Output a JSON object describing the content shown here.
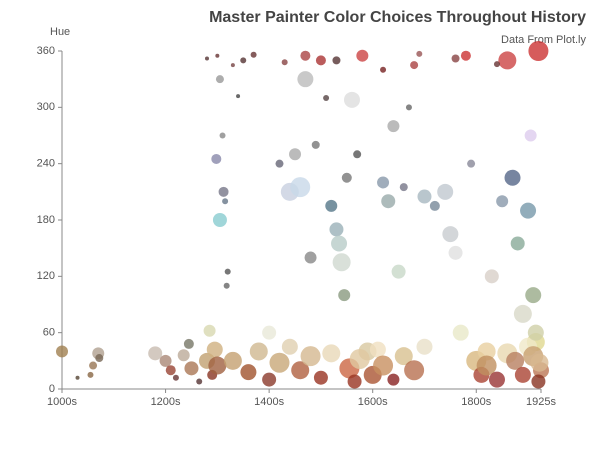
{
  "chart_data": {
    "type": "scatter",
    "title": "Master Painter Color Choices Throughout History",
    "subtitle": "Data From Plot.ly",
    "y_label": "Hue",
    "xlim": [
      1000,
      1925
    ],
    "ylim": [
      0,
      360
    ],
    "xticks": [
      {
        "value": 1000,
        "label": "1000s"
      },
      {
        "value": 1200,
        "label": "1200s"
      },
      {
        "value": 1400,
        "label": "1400s"
      },
      {
        "value": 1600,
        "label": "1600s"
      },
      {
        "value": 1800,
        "label": "1800s"
      },
      {
        "value": 1925,
        "label": "1925s"
      }
    ],
    "yticks": [
      0,
      60,
      120,
      180,
      240,
      300,
      360
    ],
    "x": [
      1000,
      1030,
      1055,
      1060,
      1070,
      1072,
      1180,
      1200,
      1210,
      1220,
      1235,
      1245,
      1250,
      1265,
      1280,
      1285,
      1290,
      1295,
      1300,
      1305,
      1298,
      1305,
      1310,
      1312,
      1315,
      1300,
      1318,
      1340,
      1350,
      1320,
      1330,
      1360,
      1380,
      1400,
      1420,
      1440,
      1460,
      1480,
      1500,
      1520,
      1400,
      1420,
      1440,
      1450,
      1460,
      1470,
      1480,
      1490,
      1500,
      1510,
      1520,
      1530,
      1535,
      1540,
      1545,
      1550,
      1560,
      1570,
      1580,
      1590,
      1555,
      1565,
      1575,
      1600,
      1610,
      1620,
      1640,
      1660,
      1680,
      1700,
      1620,
      1630,
      1640,
      1650,
      1660,
      1670,
      1680,
      1700,
      1720,
      1740,
      1750,
      1760,
      1770,
      1780,
      1790,
      1800,
      1810,
      1820,
      1830,
      1850,
      1860,
      1870,
      1880,
      1890,
      1900,
      1905,
      1910,
      1915,
      1920,
      1925,
      1280,
      1330,
      1370,
      1430,
      1470,
      1530,
      1620,
      1690,
      1760,
      1840,
      1820,
      1840,
      1860,
      1875,
      1890,
      1900,
      1910,
      1915,
      1920,
      1922
    ],
    "values": [
      40,
      12,
      15,
      25,
      38,
      33,
      38,
      30,
      20,
      12,
      36,
      48,
      22,
      8,
      30,
      62,
      15,
      42,
      25,
      180,
      245,
      330,
      270,
      210,
      200,
      355,
      110,
      312,
      350,
      125,
      30,
      18,
      40,
      10,
      28,
      45,
      20,
      35,
      12,
      38,
      60,
      240,
      210,
      250,
      215,
      330,
      140,
      260,
      350,
      310,
      195,
      170,
      155,
      135,
      100,
      225,
      308,
      250,
      355,
      40,
      22,
      8,
      32,
      15,
      42,
      25,
      10,
      35,
      20,
      45,
      220,
      200,
      280,
      125,
      215,
      300,
      345,
      205,
      195,
      210,
      165,
      145,
      60,
      355,
      240,
      30,
      15,
      40,
      120,
      200,
      350,
      225,
      155,
      80,
      190,
      270,
      100,
      50,
      360,
      20,
      352,
      345,
      356,
      348,
      355,
      350,
      340,
      357,
      352,
      346,
      25,
      10,
      38,
      30,
      15,
      45,
      35,
      60,
      8,
      28
    ],
    "sizes": [
      6,
      2,
      3,
      4,
      6,
      4,
      7,
      6,
      5,
      3,
      6,
      5,
      7,
      3,
      8,
      6,
      5,
      8,
      9,
      7,
      5,
      4,
      3,
      5,
      3,
      2,
      3,
      2,
      3,
      3,
      9,
      8,
      9,
      7,
      10,
      8,
      9,
      10,
      7,
      9,
      7,
      4,
      9,
      6,
      10,
      8,
      6,
      4,
      5,
      3,
      6,
      7,
      8,
      9,
      6,
      5,
      8,
      4,
      6,
      9,
      10,
      7,
      10,
      9,
      8,
      10,
      6,
      9,
      10,
      8,
      6,
      7,
      6,
      7,
      4,
      3,
      4,
      7,
      5,
      8,
      8,
      7,
      8,
      5,
      4,
      10,
      8,
      9,
      7,
      6,
      9,
      8,
      7,
      9,
      8,
      6,
      8,
      9,
      10,
      8,
      2,
      2,
      3,
      3,
      5,
      4,
      3,
      3,
      4,
      3,
      10,
      8,
      10,
      9,
      8,
      9,
      10,
      8,
      7,
      9
    ],
    "colors": [
      "#a08050",
      "#554433",
      "#886644",
      "#997755",
      "#b0a090",
      "#776655",
      "#c8bcb0",
      "#aa8877",
      "#994433",
      "#663333",
      "#bbaa99",
      "#777766",
      "#aa7755",
      "#553333",
      "#c0a070",
      "#d8d8b0",
      "#883322",
      "#d0b080",
      "#a06040",
      "#88ccd0",
      "#8888aa",
      "#999999",
      "#888888",
      "#777788",
      "#667788",
      "#663333",
      "#666666",
      "#444444",
      "#553333",
      "#555555",
      "#c4a070",
      "#a0522d",
      "#d0b890",
      "#8b3a2a",
      "#c8a878",
      "#e0d0b0",
      "#b06040",
      "#d4b890",
      "#993322",
      "#e8d8b8",
      "#e8e8d8",
      "#666677",
      "#c8d0e0",
      "#aaaaaa",
      "#c8d8e8",
      "#bbbbbb",
      "#888888",
      "#777777",
      "#aa3333",
      "#554444",
      "#557788",
      "#9ab0b8",
      "#b8ccc8",
      "#cfd8d0",
      "#8a9a80",
      "#777777",
      "#dddddd",
      "#555555",
      "#cc4444",
      "#d8c8a0",
      "#cc6644",
      "#993322",
      "#e0c8a0",
      "#aa5533",
      "#f0e0c0",
      "#c89060",
      "#882222",
      "#d8c090",
      "#b87050",
      "#e8e0c8",
      "#8899aa",
      "#99aaaa",
      "#aaaaaa",
      "#c8d8c8",
      "#777788",
      "#666666",
      "#aa4444",
      "#a8b8c0",
      "#778899",
      "#c0c8d0",
      "#c8ccd0",
      "#e0e0e0",
      "#e8e8c8",
      "#cc3333",
      "#888899",
      "#d8b880",
      "#aa4433",
      "#e8d0a0",
      "#d8d0c8",
      "#8899aa",
      "#cc4444",
      "#556688",
      "#88aa99",
      "#d8d8c8",
      "#7799aa",
      "#ddccee",
      "#99aa88",
      "#e0d890",
      "#cc3333",
      "#bb7755",
      "#553333",
      "#774444",
      "#663333",
      "#884444",
      "#aa4444",
      "#553333",
      "#772222",
      "#995555",
      "#884444",
      "#663333",
      "#c09060",
      "#993333",
      "#e8d8b0",
      "#b88060",
      "#aa4433",
      "#f0e8c8",
      "#c8a070",
      "#d0d0a8",
      "#883322",
      "#d8b890"
    ]
  }
}
